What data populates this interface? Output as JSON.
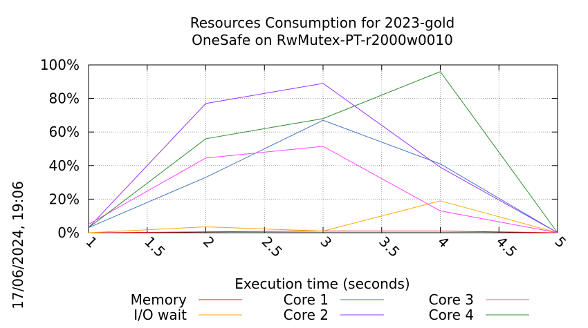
{
  "chart_data": {
    "type": "line",
    "title": "Resources Consumption for 2023-gold",
    "subtitle": "OneSafe on RwMutex-PT-r2000w0010",
    "xlabel": "Execution time (seconds)",
    "ylabel": "",
    "timestamp": "17/06/2024, 19:06",
    "xlim": [
      1,
      5
    ],
    "ylim": [
      0,
      100
    ],
    "x_ticks": [
      "1",
      "1.5",
      "2",
      "2.5",
      "3",
      "3.5",
      "4",
      "4.5",
      "5"
    ],
    "y_ticks": [
      "0%",
      "20%",
      "40%",
      "60%",
      "80%",
      "100%"
    ],
    "grid": true,
    "legend_position": "bottom",
    "x": [
      1,
      2,
      3,
      4,
      5
    ],
    "series": [
      {
        "name": "Memory",
        "color": "#e41a1c",
        "values": [
          0,
          0.5,
          1,
          1,
          0
        ]
      },
      {
        "name": "I/O wait",
        "color": "#ffa500",
        "values": [
          0,
          3.5,
          1,
          19,
          0
        ]
      },
      {
        "name": "Core 1",
        "color": "#4472c4",
        "values": [
          3,
          33,
          67,
          41,
          0
        ]
      },
      {
        "name": "Core 2",
        "color": "#9b30ff",
        "values": [
          3,
          77,
          89,
          39,
          0
        ]
      },
      {
        "name": "Core 3",
        "color": "#ff40ff",
        "values": [
          5,
          44.5,
          51.5,
          13,
          0
        ]
      },
      {
        "name": "Core 4",
        "color": "#2e8b2e",
        "values": [
          3,
          56,
          68,
          96,
          0
        ]
      }
    ]
  }
}
